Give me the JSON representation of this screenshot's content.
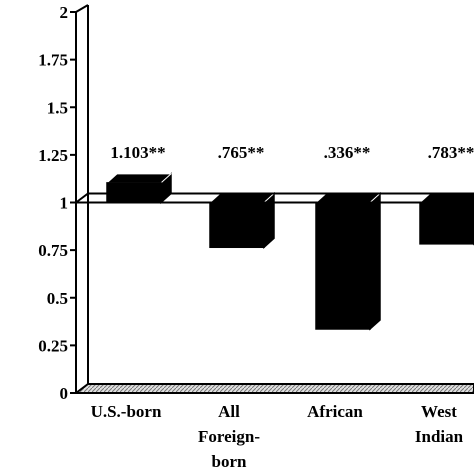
{
  "chart_data": {
    "type": "bar",
    "baseline": 1,
    "ylim": [
      0,
      2
    ],
    "yticks": [
      "0",
      "0.25",
      "0.5",
      "0.75",
      "1",
      "1.25",
      "1.5",
      "1.75",
      "2"
    ],
    "ytick_values": [
      0,
      0.25,
      0.5,
      0.75,
      1,
      1.25,
      1.5,
      1.75,
      2
    ],
    "categories": [
      [
        "U.S.-born"
      ],
      [
        "All",
        "Foreign-",
        "born"
      ],
      [
        "African"
      ],
      [
        "West",
        "Indian"
      ]
    ],
    "values": [
      1.103,
      0.765,
      0.336,
      0.783
    ],
    "value_labels": [
      "1.103**",
      ".765**",
      ".336**",
      ".783**"
    ],
    "colors": {
      "bar": "#000000",
      "floor": "#bdbdbd"
    }
  }
}
